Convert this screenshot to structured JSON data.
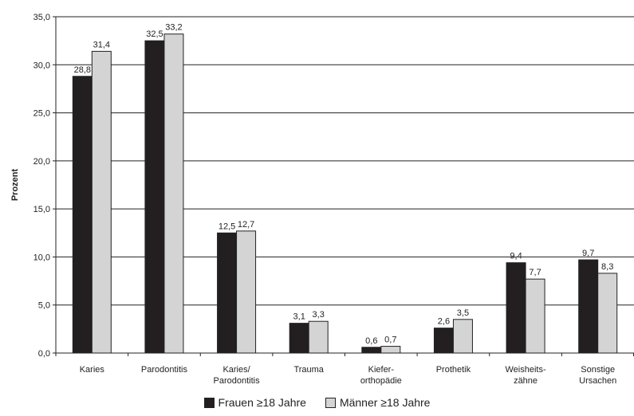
{
  "chart_data": {
    "type": "bar",
    "ylabel": "Prozent",
    "ylim": [
      0,
      35
    ],
    "yticks": [
      "0,0",
      "5,0",
      "10,0",
      "15,0",
      "20,0",
      "25,0",
      "30,0",
      "35,0"
    ],
    "grid": true,
    "legend_position": "bottom",
    "categories": [
      [
        "Karies"
      ],
      [
        "Parodontitis"
      ],
      [
        "Karies/",
        "Parodontitis"
      ],
      [
        "Trauma"
      ],
      [
        "Kiefer-",
        "orthopädie"
      ],
      [
        "Prothetik"
      ],
      [
        "Weisheits-",
        "zähne"
      ],
      [
        "Sonstige",
        "Ursachen"
      ]
    ],
    "series": [
      {
        "name": "Frauen ≥18 Jahre",
        "color": "#231f20",
        "values": [
          28.8,
          32.5,
          12.5,
          3.1,
          0.6,
          2.6,
          9.4,
          9.7
        ],
        "labels": [
          "28,8",
          "32,5",
          "12,5",
          "3,1",
          "0,6",
          "2,6",
          "9,4",
          "9,7"
        ]
      },
      {
        "name": "Männer ≥18 Jahre",
        "color": "#d4d4d4",
        "values": [
          31.4,
          33.2,
          12.7,
          3.3,
          0.7,
          3.5,
          7.7,
          8.3
        ],
        "labels": [
          "31,4",
          "33,2",
          "12,7",
          "3,3",
          "0,7",
          "3,5",
          "7,7",
          "8,3"
        ]
      }
    ]
  }
}
